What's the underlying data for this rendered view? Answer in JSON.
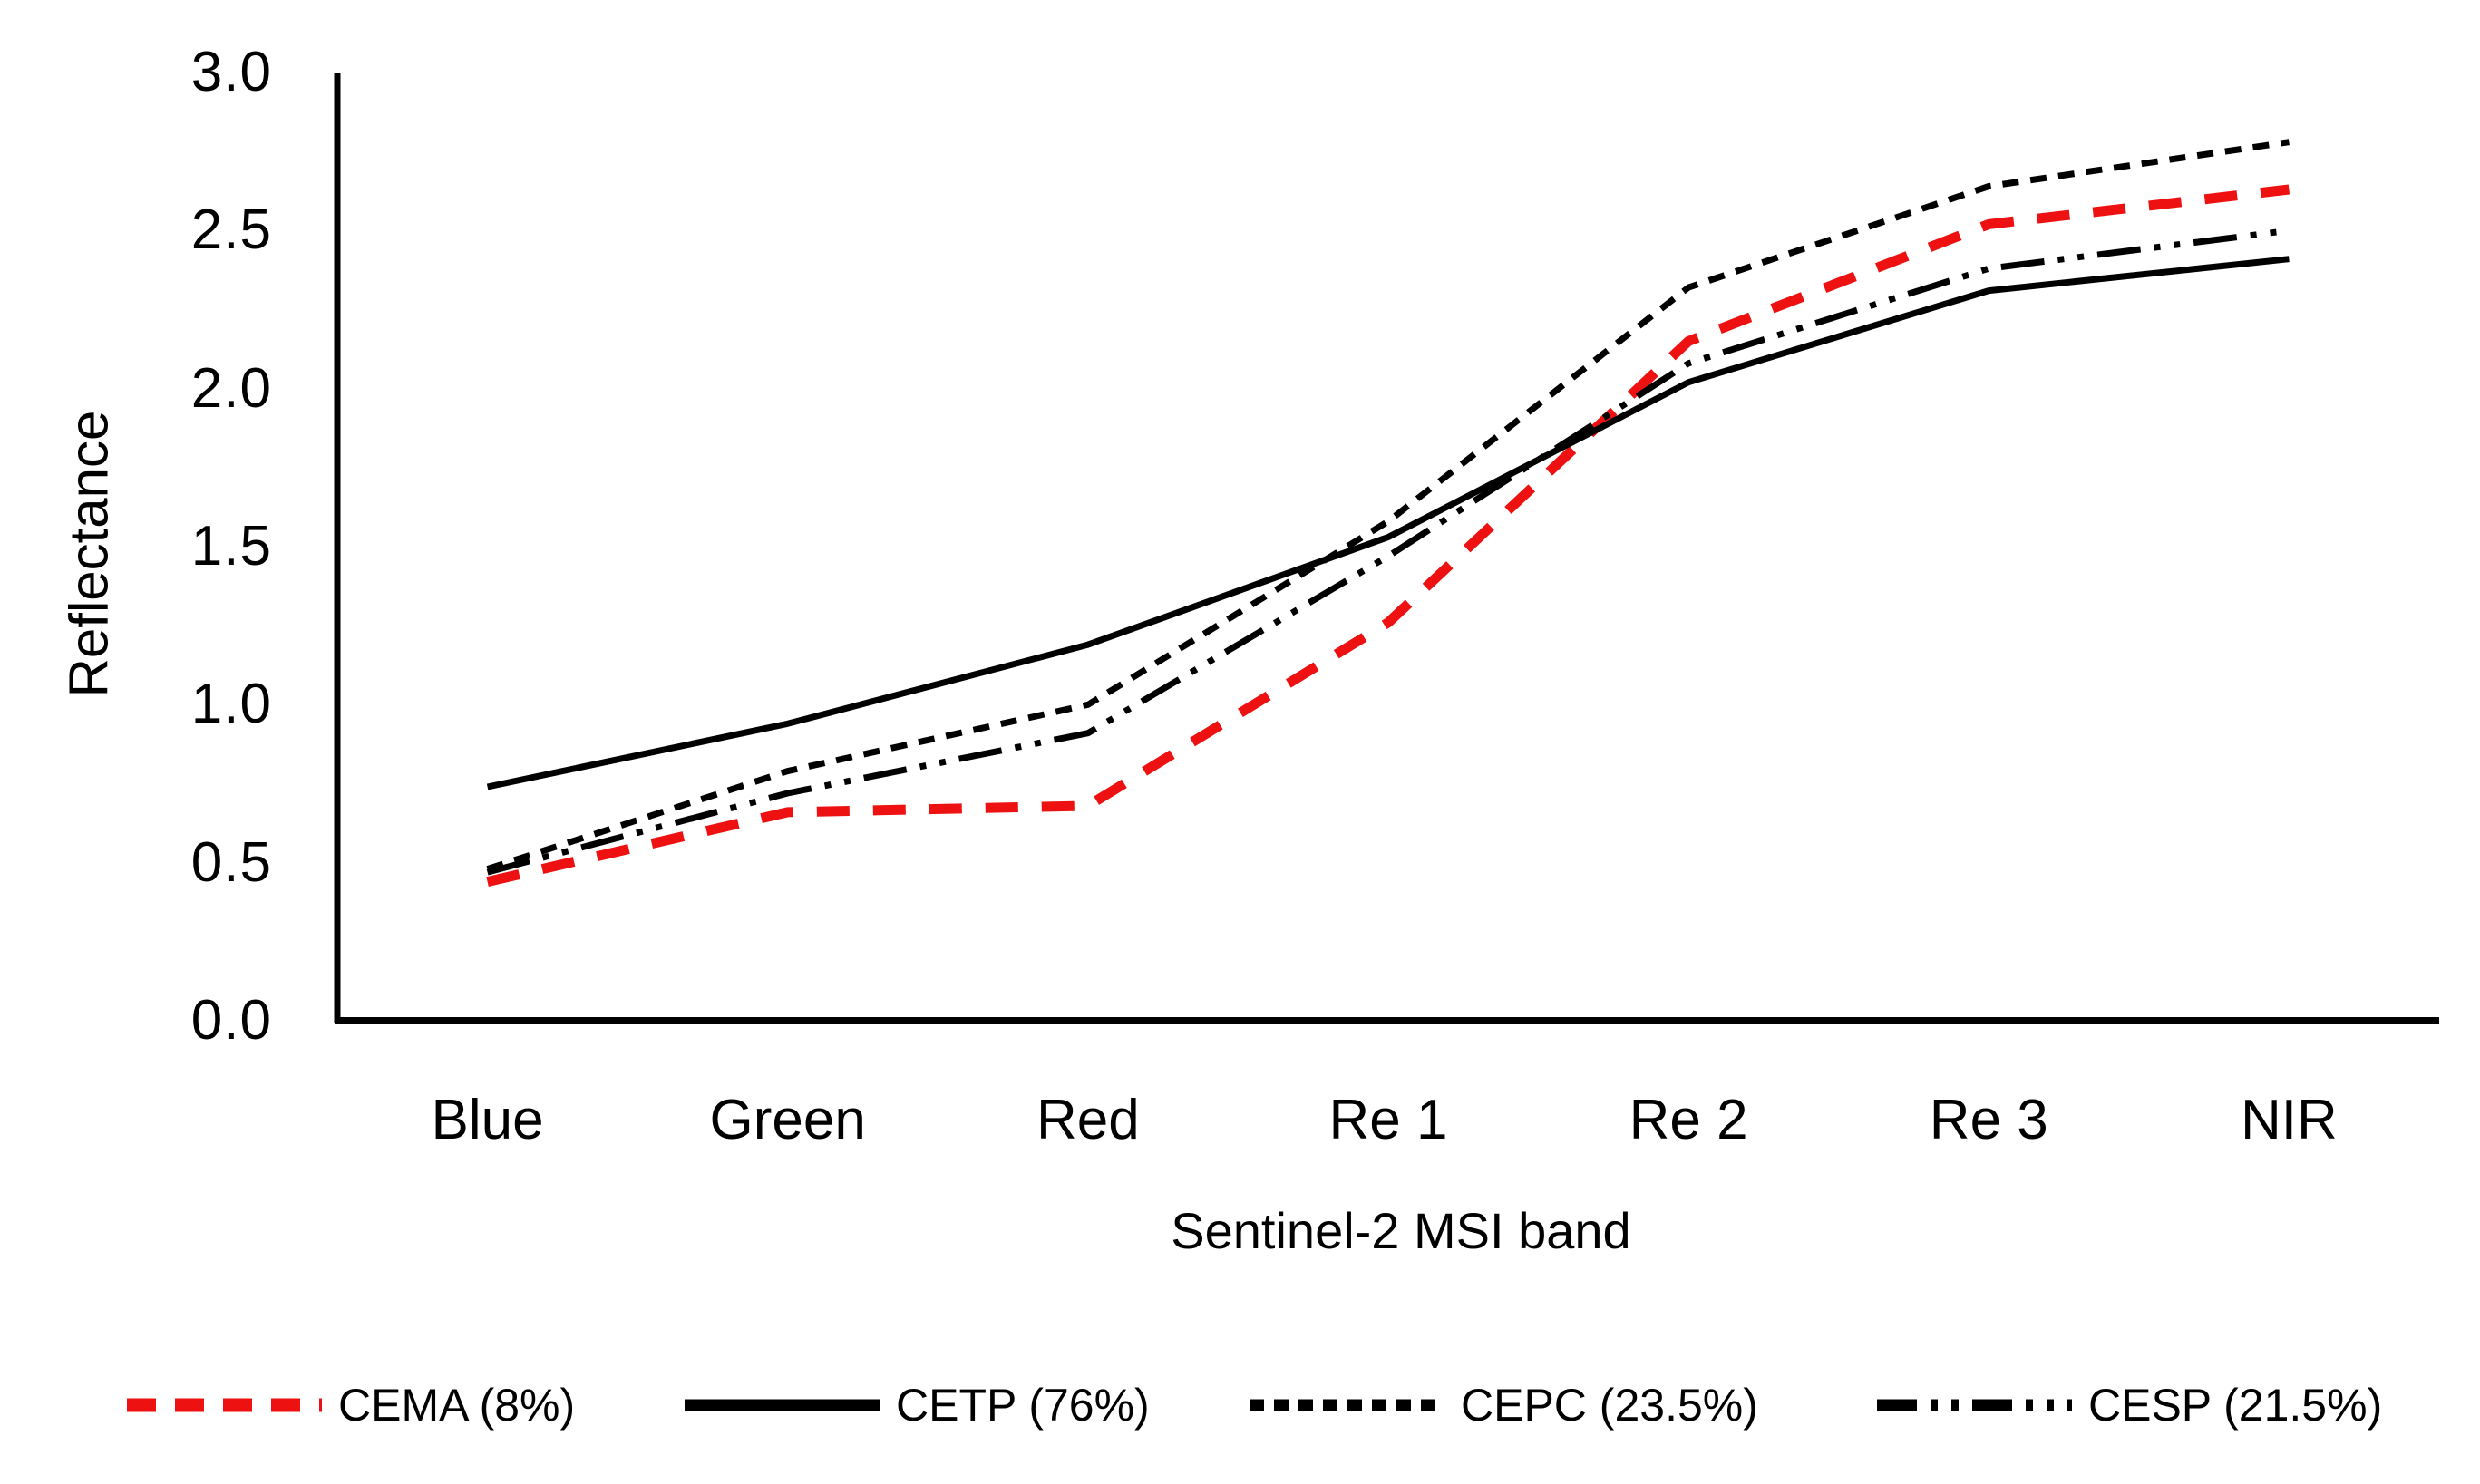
{
  "chart_data": {
    "type": "line",
    "title": "",
    "xlabel": "Sentinel-2 MSI band",
    "ylabel": "Reflectance",
    "categories": [
      "Blue",
      "Green",
      "Red",
      "Re 1",
      "Re 2",
      "Re 3",
      "NIR"
    ],
    "y_ticks": [
      "0.0",
      "0.5",
      "1.0",
      "1.5",
      "2.0",
      "2.5",
      "3.0"
    ],
    "ylim": [
      0.0,
      3.0
    ],
    "grid": false,
    "legend_position": "bottom",
    "axis_color": "#000000",
    "series": [
      {
        "name": "CEMA (8%)",
        "color": "#ee1111",
        "line_style": "dashed-wide",
        "values": [
          0.44,
          0.66,
          0.68,
          1.26,
          2.15,
          2.52,
          2.63
        ]
      },
      {
        "name": "CETP (76%)",
        "color": "#000000",
        "line_style": "solid",
        "values": [
          0.74,
          0.94,
          1.19,
          1.53,
          2.02,
          2.31,
          2.41
        ]
      },
      {
        "name": "CEPC (23.5%)",
        "color": "#000000",
        "line_style": "dashed-fine",
        "values": [
          0.48,
          0.79,
          1.0,
          1.58,
          2.32,
          2.64,
          2.78
        ]
      },
      {
        "name": "CESP (21.5%)",
        "color": "#000000",
        "line_style": "dash-dot-dot",
        "values": [
          0.47,
          0.72,
          0.91,
          1.47,
          2.08,
          2.38,
          2.5
        ]
      }
    ]
  }
}
